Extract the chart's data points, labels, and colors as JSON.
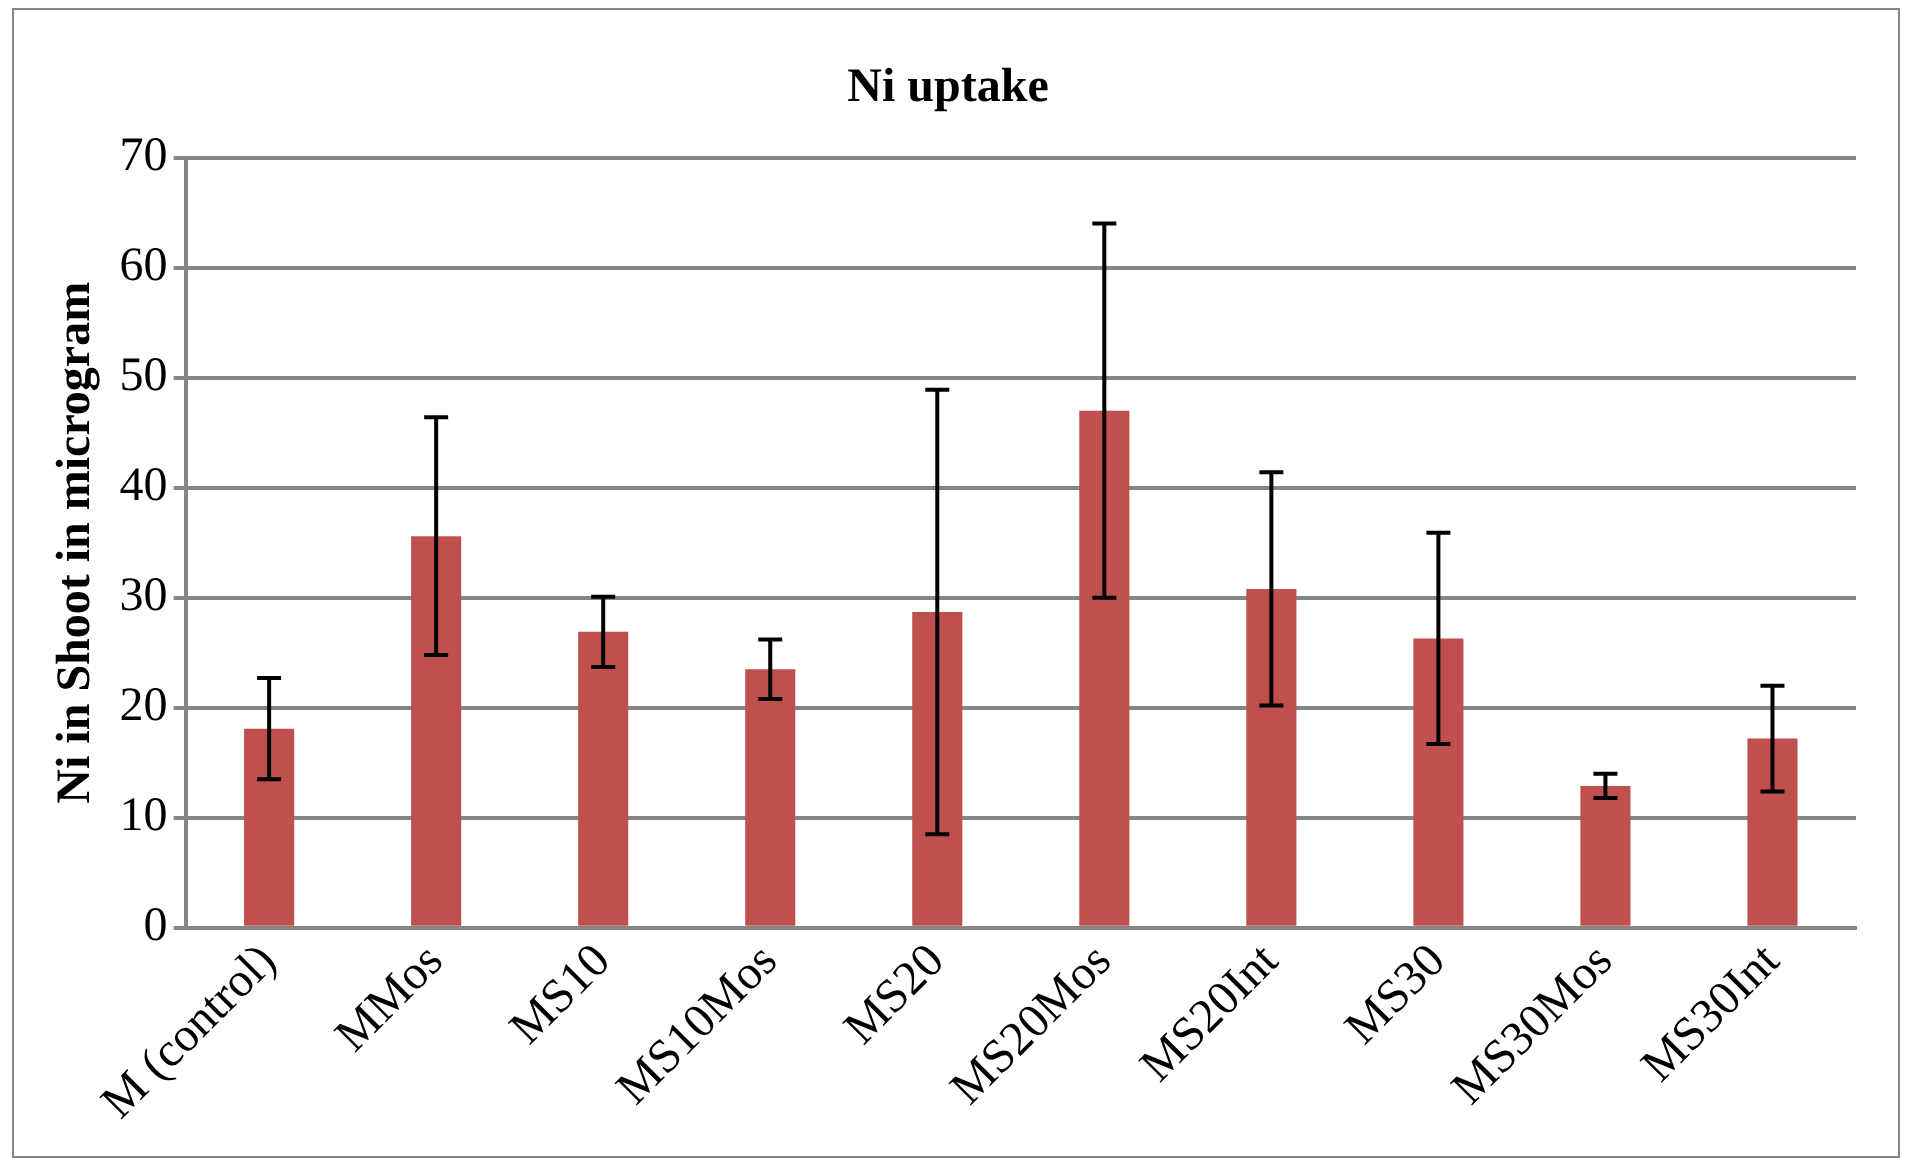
{
  "chart_data": {
    "type": "bar",
    "title": "Ni uptake",
    "ylabel": "Ni in Shoot in microgram",
    "categories": [
      "M (control)",
      "MMos",
      "MS10",
      "MS10Mos",
      "MS20",
      "MS20Mos",
      "MS20Int",
      "MS30",
      "MS30Mos",
      "MS30Int"
    ],
    "values": [
      18.1,
      35.6,
      26.9,
      23.5,
      28.7,
      47.0,
      30.8,
      26.3,
      12.9,
      17.2
    ],
    "errors": [
      4.6,
      10.8,
      3.2,
      2.7,
      20.2,
      17.0,
      10.6,
      9.6,
      1.1,
      4.8
    ],
    "color": "#c0504d",
    "ylim": [
      0,
      70
    ],
    "yticks": [
      0,
      10,
      20,
      30,
      40,
      50,
      60,
      70
    ],
    "grid": "y",
    "legend": false
  }
}
